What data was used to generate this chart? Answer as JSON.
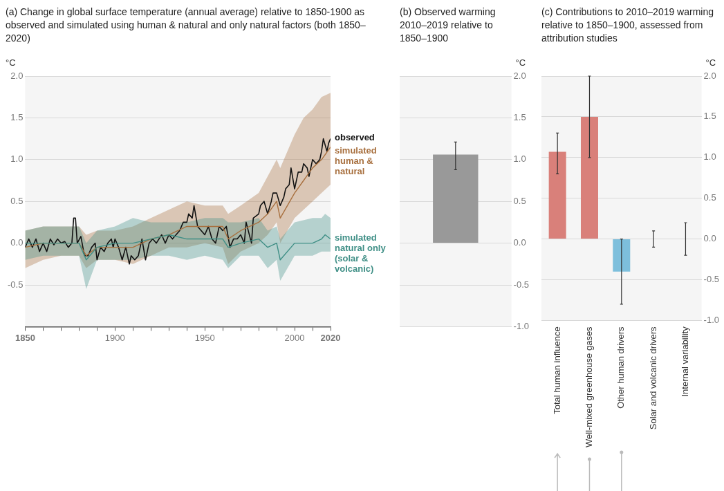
{
  "chart_data": [
    {
      "type": "line",
      "title": "(a) Change in global surface temperature (annual average) relative to 1850-1900 as observed and simulated using human & natural and only natural factors (both 1850–2020)",
      "ylabel": "°C",
      "xlim": [
        1850,
        2020
      ],
      "xticks": [
        1850,
        {
          "value": 1860,
          "label": null
        },
        {
          "value": 1870,
          "label": null
        },
        {
          "value": 1880,
          "label": null
        },
        {
          "value": 1890,
          "label": null
        },
        1900,
        {
          "value": 1910,
          "label": null
        },
        {
          "value": 1920,
          "label": null
        },
        {
          "value": 1930,
          "label": null
        },
        {
          "value": 1940,
          "label": null
        },
        1950,
        {
          "value": 1960,
          "label": null
        },
        {
          "value": 1970,
          "label": null
        },
        {
          "value": 1980,
          "label": null
        },
        {
          "value": 1990,
          "label": null
        },
        2000,
        {
          "value": 2010,
          "label": null
        },
        2020
      ],
      "ylim": [
        -1,
        2
      ],
      "yticks": [
        -0.5,
        {
          "value": 0,
          "label": "0.0"
        },
        0.5,
        {
          "value": 1,
          "label": "1.0"
        },
        1.5,
        {
          "value": 2,
          "label": "2.0"
        }
      ],
      "grid": "y",
      "legend": false,
      "series": [
        {
          "name": "simulated natural only (solar & volcanic)",
          "color": "#3f8f86",
          "x": [
            1850,
            1860,
            1870,
            1880,
            1884,
            1890,
            1900,
            1910,
            1920,
            1930,
            1940,
            1950,
            1960,
            1963,
            1970,
            1980,
            1985,
            1990,
            1992,
            2000,
            2010,
            2015,
            2017,
            2020
          ],
          "values": [
            0.0,
            0.0,
            0.0,
            0.0,
            -0.2,
            -0.05,
            0.0,
            0.0,
            0.05,
            0.1,
            0.05,
            0.05,
            0.05,
            -0.05,
            0.0,
            0.05,
            -0.05,
            0.0,
            -0.2,
            0.0,
            0.0,
            0.05,
            0.1,
            0.05
          ],
          "lower": [
            -0.2,
            -0.15,
            -0.15,
            -0.15,
            -0.55,
            -0.2,
            -0.2,
            -0.2,
            -0.15,
            -0.15,
            -0.2,
            -0.15,
            -0.2,
            -0.3,
            -0.15,
            -0.15,
            -0.3,
            -0.2,
            -0.45,
            -0.15,
            -0.15,
            -0.1,
            -0.1,
            -0.1
          ],
          "upper": [
            0.15,
            0.2,
            0.2,
            0.2,
            0.0,
            0.15,
            0.2,
            0.3,
            0.25,
            0.25,
            0.25,
            0.3,
            0.3,
            0.25,
            0.25,
            0.3,
            0.15,
            0.2,
            0.05,
            0.25,
            0.3,
            0.3,
            0.35,
            0.3
          ]
        },
        {
          "name": "simulated human & natural",
          "color": "#a8703f",
          "x": [
            1850,
            1860,
            1870,
            1880,
            1884,
            1890,
            1900,
            1910,
            1920,
            1930,
            1940,
            1950,
            1960,
            1963,
            1970,
            1980,
            1985,
            1990,
            1992,
            2000,
            2005,
            2010,
            2015,
            2020
          ],
          "values": [
            -0.05,
            0.0,
            0.0,
            0.0,
            -0.15,
            -0.05,
            -0.05,
            -0.05,
            0.05,
            0.1,
            0.2,
            0.2,
            0.2,
            0.05,
            0.15,
            0.25,
            0.35,
            0.5,
            0.3,
            0.6,
            0.75,
            0.9,
            1.0,
            1.15
          ],
          "lower": [
            -0.3,
            -0.2,
            -0.15,
            -0.15,
            -0.3,
            -0.2,
            -0.2,
            -0.25,
            -0.15,
            -0.05,
            -0.05,
            0.0,
            -0.05,
            -0.25,
            -0.1,
            0.0,
            0.1,
            0.25,
            0.0,
            0.3,
            0.4,
            0.5,
            0.6,
            0.7
          ],
          "upper": [
            0.15,
            0.2,
            0.2,
            0.2,
            0.1,
            0.15,
            0.15,
            0.2,
            0.3,
            0.4,
            0.5,
            0.45,
            0.45,
            0.35,
            0.45,
            0.6,
            0.8,
            1.0,
            0.9,
            1.3,
            1.5,
            1.6,
            1.75,
            1.8
          ]
        },
        {
          "name": "observed",
          "color": "#111111",
          "x": [
            1850,
            1852,
            1854,
            1856,
            1858,
            1860,
            1862,
            1864,
            1866,
            1868,
            1870,
            1872,
            1874,
            1876,
            1877,
            1878,
            1879,
            1881,
            1883,
            1885,
            1887,
            1889,
            1890,
            1892,
            1894,
            1896,
            1898,
            1899,
            1900,
            1902,
            1904,
            1906,
            1908,
            1909,
            1911,
            1913,
            1915,
            1917,
            1919,
            1921,
            1923,
            1926,
            1928,
            1930,
            1932,
            1934,
            1936,
            1938,
            1940,
            1941,
            1943,
            1944,
            1946,
            1948,
            1950,
            1952,
            1954,
            1956,
            1958,
            1960,
            1962,
            1964,
            1966,
            1968,
            1970,
            1972,
            1973,
            1976,
            1977,
            1980,
            1981,
            1983,
            1985,
            1987,
            1988,
            1990,
            1992,
            1994,
            1995,
            1997,
            1998,
            2000,
            2002,
            2004,
            2005,
            2007,
            2008,
            2010,
            2012,
            2014,
            2015,
            2016,
            2018,
            2019,
            2020
          ],
          "values": [
            -0.05,
            0.05,
            -0.05,
            0.05,
            -0.1,
            0.0,
            -0.1,
            0.05,
            -0.02,
            0.05,
            0.0,
            0.02,
            -0.05,
            0.0,
            0.3,
            0.3,
            0.0,
            0.08,
            -0.15,
            -0.15,
            -0.05,
            0.0,
            -0.2,
            -0.05,
            -0.1,
            0.0,
            0.05,
            -0.05,
            0.05,
            -0.05,
            -0.2,
            -0.05,
            -0.25,
            -0.15,
            -0.2,
            -0.15,
            0.05,
            -0.2,
            0.0,
            0.05,
            0.0,
            0.1,
            0.0,
            0.1,
            0.05,
            0.1,
            0.15,
            0.25,
            0.25,
            0.35,
            0.3,
            0.45,
            0.2,
            0.15,
            0.1,
            0.2,
            0.05,
            0.0,
            0.2,
            0.15,
            0.2,
            -0.05,
            0.05,
            0.05,
            0.1,
            0.0,
            0.25,
            0.0,
            0.3,
            0.35,
            0.45,
            0.5,
            0.35,
            0.5,
            0.6,
            0.6,
            0.45,
            0.55,
            0.65,
            0.7,
            0.9,
            0.65,
            0.85,
            0.85,
            0.95,
            0.9,
            0.8,
            1.0,
            0.95,
            1.0,
            1.1,
            1.25,
            1.1,
            1.2,
            1.25
          ]
        }
      ]
    },
    {
      "type": "bar",
      "title": "(b) Observed warming 2010–2019 relative to 1850–1900",
      "ylabel": "°C",
      "categories": [
        null
      ],
      "ylim": [
        -1,
        2
      ],
      "yticks": [
        {
          "value": -1,
          "label": "-1.0"
        },
        -0.5,
        {
          "value": 0,
          "label": "0.0"
        },
        0.5,
        {
          "value": 1,
          "label": "1.0"
        },
        1.5,
        {
          "value": 2,
          "label": "2.0"
        }
      ],
      "grid": "y",
      "legend": false,
      "series": [
        {
          "color": "#999999",
          "values": [
            1.06
          ],
          "errors": [
            [
              0.88,
              1.21
            ]
          ]
        }
      ]
    },
    {
      "type": "bar",
      "title": "(c) Contributions to 2010–2019 warming relative to 1850–1900, assessed from attribution studies",
      "y2label": "°C",
      "categories": [
        "Total human influence",
        "Well-mixed greenhouse gases",
        "Other human drivers",
        "Solar and volcanic drivers",
        "Internal variability"
      ],
      "y2lim": [
        -1,
        2
      ],
      "y2ticks": [
        {
          "value": -1,
          "label": "-1.0"
        },
        -0.5,
        {
          "value": 0,
          "label": "0.0"
        },
        0.5,
        {
          "value": 1,
          "label": "1.0"
        },
        1.5,
        {
          "value": 2,
          "label": "2.0"
        }
      ],
      "grid": "y",
      "legend": false,
      "series": [
        {
          "axis": "y2",
          "colors": [
            "#d9807a",
            "#d9807a",
            "#7dbfdc",
            "#d9807a",
            "#d9807a"
          ],
          "values": [
            1.07,
            1.5,
            -0.4,
            0,
            0
          ],
          "errors": [
            [
              0.8,
              1.3
            ],
            [
              1.0,
              2.0
            ],
            [
              -0.8,
              0.0
            ],
            [
              -0.1,
              0.1
            ],
            [
              -0.2,
              0.2
            ]
          ]
        }
      ]
    }
  ]
}
